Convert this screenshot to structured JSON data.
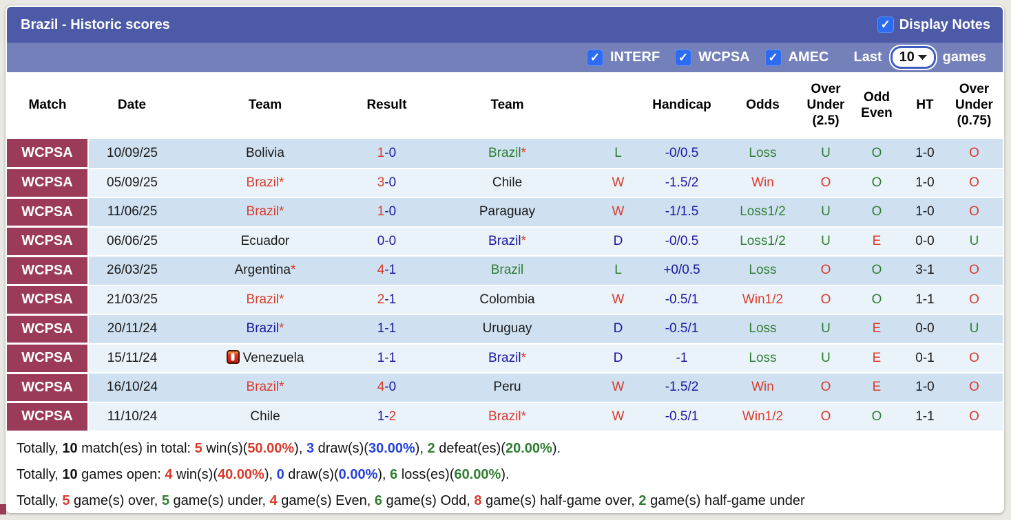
{
  "colors": {
    "accent_bar": "#4d5aa7",
    "filter_bar": "#7480ba",
    "match_column": "#9b3b58",
    "row_dark": "#cfe1f1",
    "row_light": "#eaf3fa",
    "checkbox_blue": "#2d6cf0",
    "win_red": "#d93a2b",
    "loss_green": "#2f7d31",
    "draw_navy": "#1c17a0"
  },
  "header": {
    "title": "Brazil - Historic scores",
    "display_notes_label": "Display Notes",
    "display_notes_checked": true
  },
  "filters": {
    "checkboxes": [
      {
        "label": "INTERF",
        "checked": true
      },
      {
        "label": "WCPSA",
        "checked": true
      },
      {
        "label": "AMEC",
        "checked": true
      }
    ],
    "last_label": "Last",
    "games_count": "10",
    "games_label": "games"
  },
  "table": {
    "headers": [
      "Match",
      "Date",
      "Team",
      "Result",
      "Team",
      "",
      "Handicap",
      "Odds",
      "Over Under (2.5)",
      "Odd Even",
      "HT",
      "Over Under (0.75)"
    ],
    "rows": [
      {
        "match": "WCPSA",
        "date": "10/09/25",
        "home": {
          "name": "Bolivia",
          "color": "black",
          "star": false,
          "icon": null
        },
        "score": {
          "h": "1",
          "hc": "red",
          "a": "0",
          "ac": "navy"
        },
        "away": {
          "name": "Brazil",
          "color": "green",
          "star": true,
          "icon": null
        },
        "wdl": {
          "t": "L",
          "c": "green"
        },
        "handicap": "-0/0.5",
        "odds": {
          "t": "Loss",
          "c": "green"
        },
        "ou25": {
          "t": "U",
          "c": "green"
        },
        "oe": {
          "t": "O",
          "c": "green"
        },
        "ht": "1-0",
        "ou075": {
          "t": "O",
          "c": "red"
        }
      },
      {
        "match": "WCPSA",
        "date": "05/09/25",
        "home": {
          "name": "Brazil",
          "color": "red",
          "star": true,
          "icon": null
        },
        "score": {
          "h": "3",
          "hc": "red",
          "a": "0",
          "ac": "navy"
        },
        "away": {
          "name": "Chile",
          "color": "black",
          "star": false,
          "icon": null
        },
        "wdl": {
          "t": "W",
          "c": "red"
        },
        "handicap": "-1.5/2",
        "odds": {
          "t": "Win",
          "c": "red"
        },
        "ou25": {
          "t": "O",
          "c": "red"
        },
        "oe": {
          "t": "O",
          "c": "green"
        },
        "ht": "1-0",
        "ou075": {
          "t": "O",
          "c": "red"
        }
      },
      {
        "match": "WCPSA",
        "date": "11/06/25",
        "home": {
          "name": "Brazil",
          "color": "red",
          "star": true,
          "icon": null
        },
        "score": {
          "h": "1",
          "hc": "red",
          "a": "0",
          "ac": "navy"
        },
        "away": {
          "name": "Paraguay",
          "color": "black",
          "star": false,
          "icon": null
        },
        "wdl": {
          "t": "W",
          "c": "red"
        },
        "handicap": "-1/1.5",
        "odds": {
          "t": "Loss1/2",
          "c": "green"
        },
        "ou25": {
          "t": "U",
          "c": "green"
        },
        "oe": {
          "t": "O",
          "c": "green"
        },
        "ht": "1-0",
        "ou075": {
          "t": "O",
          "c": "red"
        }
      },
      {
        "match": "WCPSA",
        "date": "06/06/25",
        "home": {
          "name": "Ecuador",
          "color": "black",
          "star": false,
          "icon": null
        },
        "score": {
          "h": "0",
          "hc": "navy",
          "a": "0",
          "ac": "navy"
        },
        "away": {
          "name": "Brazil",
          "color": "navy",
          "star": true,
          "icon": null
        },
        "wdl": {
          "t": "D",
          "c": "navy"
        },
        "handicap": "-0/0.5",
        "odds": {
          "t": "Loss1/2",
          "c": "green"
        },
        "ou25": {
          "t": "U",
          "c": "green"
        },
        "oe": {
          "t": "E",
          "c": "red"
        },
        "ht": "0-0",
        "ou075": {
          "t": "U",
          "c": "green"
        }
      },
      {
        "match": "WCPSA",
        "date": "26/03/25",
        "home": {
          "name": "Argentina",
          "color": "black",
          "star": true,
          "icon": null
        },
        "score": {
          "h": "4",
          "hc": "red",
          "a": "1",
          "ac": "navy"
        },
        "away": {
          "name": "Brazil",
          "color": "green",
          "star": false,
          "icon": null
        },
        "wdl": {
          "t": "L",
          "c": "green"
        },
        "handicap": "+0/0.5",
        "odds": {
          "t": "Loss",
          "c": "green"
        },
        "ou25": {
          "t": "O",
          "c": "red"
        },
        "oe": {
          "t": "O",
          "c": "green"
        },
        "ht": "3-1",
        "ou075": {
          "t": "O",
          "c": "red"
        }
      },
      {
        "match": "WCPSA",
        "date": "21/03/25",
        "home": {
          "name": "Brazil",
          "color": "red",
          "star": true,
          "icon": null
        },
        "score": {
          "h": "2",
          "hc": "red",
          "a": "1",
          "ac": "navy"
        },
        "away": {
          "name": "Colombia",
          "color": "black",
          "star": false,
          "icon": null
        },
        "wdl": {
          "t": "W",
          "c": "red"
        },
        "handicap": "-0.5/1",
        "odds": {
          "t": "Win1/2",
          "c": "red"
        },
        "ou25": {
          "t": "O",
          "c": "red"
        },
        "oe": {
          "t": "O",
          "c": "green"
        },
        "ht": "1-1",
        "ou075": {
          "t": "O",
          "c": "red"
        }
      },
      {
        "match": "WCPSA",
        "date": "20/11/24",
        "home": {
          "name": "Brazil",
          "color": "navy",
          "star": true,
          "icon": null
        },
        "score": {
          "h": "1",
          "hc": "navy",
          "a": "1",
          "ac": "navy"
        },
        "away": {
          "name": "Uruguay",
          "color": "black",
          "star": false,
          "icon": null
        },
        "wdl": {
          "t": "D",
          "c": "navy"
        },
        "handicap": "-0.5/1",
        "odds": {
          "t": "Loss",
          "c": "green"
        },
        "ou25": {
          "t": "U",
          "c": "green"
        },
        "oe": {
          "t": "E",
          "c": "red"
        },
        "ht": "0-0",
        "ou075": {
          "t": "U",
          "c": "green"
        }
      },
      {
        "match": "WCPSA",
        "date": "15/11/24",
        "home": {
          "name": "Venezuela",
          "color": "black",
          "star": false,
          "icon": "red-card-icon"
        },
        "score": {
          "h": "1",
          "hc": "navy",
          "a": "1",
          "ac": "navy"
        },
        "away": {
          "name": "Brazil",
          "color": "navy",
          "star": true,
          "icon": null
        },
        "wdl": {
          "t": "D",
          "c": "navy"
        },
        "handicap": "-1",
        "odds": {
          "t": "Loss",
          "c": "green"
        },
        "ou25": {
          "t": "U",
          "c": "green"
        },
        "oe": {
          "t": "E",
          "c": "red"
        },
        "ht": "0-1",
        "ou075": {
          "t": "O",
          "c": "red"
        }
      },
      {
        "match": "WCPSA",
        "date": "16/10/24",
        "home": {
          "name": "Brazil",
          "color": "red",
          "star": true,
          "icon": null
        },
        "score": {
          "h": "4",
          "hc": "red",
          "a": "0",
          "ac": "navy"
        },
        "away": {
          "name": "Peru",
          "color": "black",
          "star": false,
          "icon": null
        },
        "wdl": {
          "t": "W",
          "c": "red"
        },
        "handicap": "-1.5/2",
        "odds": {
          "t": "Win",
          "c": "red"
        },
        "ou25": {
          "t": "O",
          "c": "red"
        },
        "oe": {
          "t": "E",
          "c": "red"
        },
        "ht": "1-0",
        "ou075": {
          "t": "O",
          "c": "red"
        }
      },
      {
        "match": "WCPSA",
        "date": "11/10/24",
        "home": {
          "name": "Chile",
          "color": "black",
          "star": false,
          "icon": null
        },
        "score": {
          "h": "1",
          "hc": "navy",
          "a": "2",
          "ac": "red"
        },
        "away": {
          "name": "Brazil",
          "color": "red",
          "star": true,
          "icon": null
        },
        "wdl": {
          "t": "W",
          "c": "red"
        },
        "handicap": "-0.5/1",
        "odds": {
          "t": "Win1/2",
          "c": "red"
        },
        "ou25": {
          "t": "O",
          "c": "red"
        },
        "oe": {
          "t": "O",
          "c": "green"
        },
        "ht": "1-1",
        "ou075": {
          "t": "O",
          "c": "red"
        }
      }
    ]
  },
  "footer": {
    "lines": [
      [
        {
          "t": "Totally, "
        },
        {
          "t": "10",
          "b": 1
        },
        {
          "t": " match(es) in total: "
        },
        {
          "t": "5",
          "c": "red",
          "b": 1
        },
        {
          "t": " win(s)("
        },
        {
          "t": "50.00%",
          "c": "red",
          "b": 1
        },
        {
          "t": "), "
        },
        {
          "t": "3",
          "c": "blue",
          "b": 1
        },
        {
          "t": " draw(s)("
        },
        {
          "t": "30.00%",
          "c": "blue",
          "b": 1
        },
        {
          "t": "), "
        },
        {
          "t": "2",
          "c": "green",
          "b": 1
        },
        {
          "t": " defeat(es)("
        },
        {
          "t": "20.00%",
          "c": "green",
          "b": 1
        },
        {
          "t": ")."
        }
      ],
      [
        {
          "t": "Totally, "
        },
        {
          "t": "10",
          "b": 1
        },
        {
          "t": " games open: "
        },
        {
          "t": "4",
          "c": "red",
          "b": 1
        },
        {
          "t": " win(s)("
        },
        {
          "t": "40.00%",
          "c": "red",
          "b": 1
        },
        {
          "t": "), "
        },
        {
          "t": "0",
          "c": "blue",
          "b": 1
        },
        {
          "t": " draw(s)("
        },
        {
          "t": "0.00%",
          "c": "blue",
          "b": 1
        },
        {
          "t": "), "
        },
        {
          "t": "6",
          "c": "green",
          "b": 1
        },
        {
          "t": " loss(es)("
        },
        {
          "t": "60.00%",
          "c": "green",
          "b": 1
        },
        {
          "t": ")."
        }
      ],
      [
        {
          "t": "Totally, "
        },
        {
          "t": "5",
          "c": "red",
          "b": 1
        },
        {
          "t": " game(s) over, "
        },
        {
          "t": "5",
          "c": "green",
          "b": 1
        },
        {
          "t": " game(s) under, "
        },
        {
          "t": "4",
          "c": "red",
          "b": 1
        },
        {
          "t": " game(s) Even, "
        },
        {
          "t": "6",
          "c": "green",
          "b": 1
        },
        {
          "t": " game(s) Odd, "
        },
        {
          "t": "8",
          "c": "red",
          "b": 1
        },
        {
          "t": " game(s) half-game over, "
        },
        {
          "t": "2",
          "c": "green",
          "b": 1
        },
        {
          "t": " game(s) half-game under"
        }
      ]
    ]
  }
}
